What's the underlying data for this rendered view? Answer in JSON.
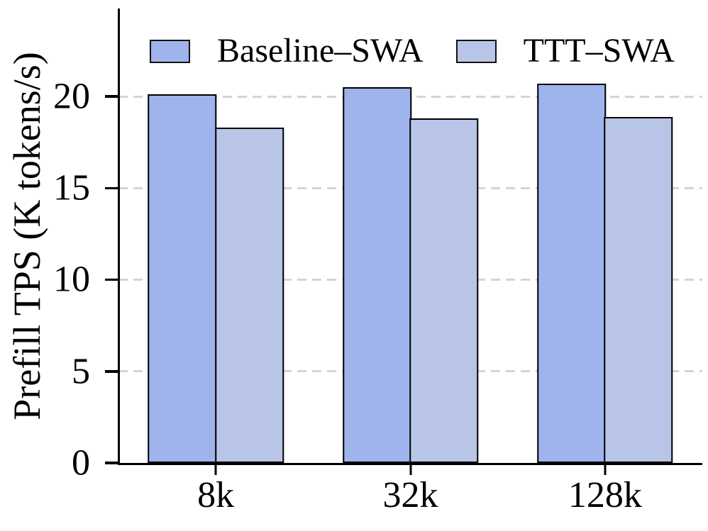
{
  "chart_data": {
    "type": "bar",
    "title": "",
    "ylabel": "Prefill TPS (K tokens/s)",
    "xlabel": "",
    "categories": [
      "8k",
      "32k",
      "128k"
    ],
    "series": [
      {
        "name": "Baseline–SWA",
        "color": "#9FB3EC",
        "values": [
          20.1,
          20.5,
          20.7
        ]
      },
      {
        "name": "TTT–SWA",
        "color": "#B8C5E7",
        "values": [
          18.3,
          18.8,
          18.9
        ]
      }
    ],
    "ylim": [
      0,
      24.8
    ],
    "yticks": [
      0,
      5,
      10,
      15,
      20
    ],
    "gridlines": {
      "values": [
        5,
        10,
        15,
        20
      ],
      "style": "dashed",
      "color": "#d4d4d4"
    },
    "legend_position": "upper-left-inside",
    "bar_edge_color": "#000000",
    "axis_color": "#000000",
    "background_color": "#ffffff"
  }
}
